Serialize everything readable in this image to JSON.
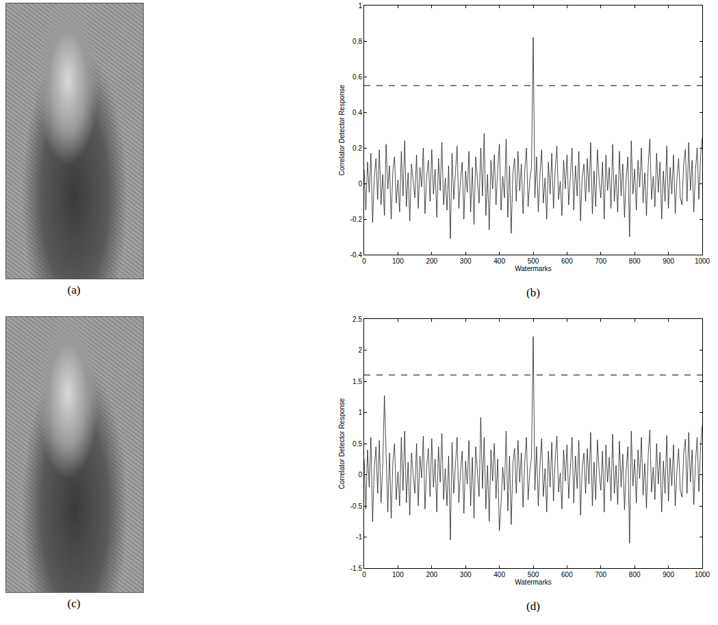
{
  "chart_data": [
    {
      "type": "line",
      "caption": "(b)",
      "x_label": "Watermarks",
      "y_label": "Correlator Detector Response",
      "color": "#000000",
      "grid": false,
      "xlim": [
        0,
        1000
      ],
      "xticks": [
        0,
        100,
        200,
        300,
        400,
        500,
        600,
        700,
        800,
        900,
        1000
      ],
      "ylim": [
        -0.4,
        1
      ],
      "yticks": [
        -0.4,
        -0.2,
        0,
        0.2,
        0.4,
        0.6,
        0.8,
        1
      ],
      "threshold": {
        "value": 0.55,
        "line_style": "dashed"
      },
      "x": [
        0,
        5,
        10,
        15,
        20,
        25,
        30,
        35,
        40,
        45,
        50,
        55,
        60,
        65,
        70,
        75,
        80,
        85,
        90,
        95,
        100,
        105,
        110,
        115,
        120,
        125,
        130,
        135,
        140,
        145,
        150,
        155,
        160,
        165,
        170,
        175,
        180,
        185,
        190,
        195,
        200,
        205,
        210,
        215,
        220,
        225,
        230,
        235,
        240,
        245,
        250,
        255,
        260,
        265,
        270,
        275,
        280,
        285,
        290,
        295,
        300,
        305,
        310,
        315,
        320,
        325,
        330,
        335,
        340,
        345,
        350,
        355,
        360,
        365,
        370,
        375,
        380,
        385,
        390,
        395,
        400,
        405,
        410,
        415,
        420,
        425,
        430,
        435,
        440,
        445,
        450,
        455,
        460,
        465,
        470,
        475,
        480,
        485,
        490,
        495,
        500,
        505,
        510,
        515,
        520,
        525,
        530,
        535,
        540,
        545,
        550,
        555,
        560,
        565,
        570,
        575,
        580,
        585,
        590,
        595,
        600,
        605,
        610,
        615,
        620,
        625,
        630,
        635,
        640,
        645,
        650,
        655,
        660,
        665,
        670,
        675,
        680,
        685,
        690,
        695,
        700,
        705,
        710,
        715,
        720,
        725,
        730,
        735,
        740,
        745,
        750,
        755,
        760,
        765,
        770,
        775,
        780,
        785,
        790,
        795,
        800,
        805,
        810,
        815,
        820,
        825,
        830,
        835,
        840,
        845,
        850,
        855,
        860,
        865,
        870,
        875,
        880,
        885,
        890,
        895,
        900,
        905,
        910,
        915,
        920,
        925,
        930,
        935,
        940,
        945,
        950,
        955,
        960,
        965,
        970,
        975,
        980,
        985,
        990,
        995,
        1000
      ],
      "values": [
        0.08,
        -0.15,
        0.12,
        -0.05,
        0.17,
        -0.22,
        0.03,
        0.14,
        -0.09,
        0.19,
        -0.12,
        0.05,
        -0.18,
        0.22,
        -0.03,
        0.1,
        -0.2,
        0.07,
        0.15,
        -0.11,
        0.02,
        -0.16,
        0.18,
        -0.07,
        0.24,
        -0.13,
        0.06,
        -0.21,
        0.11,
        0.01,
        -0.08,
        0.16,
        -0.14,
        0.09,
        -0.02,
        0.2,
        -0.17,
        0.04,
        0.13,
        -0.1,
        0.19,
        -0.06,
        0.08,
        -0.19,
        0.14,
        -0.04,
        0.23,
        -0.12,
        0.03,
        -0.15,
        0.1,
        -0.31,
        0.17,
        -0.09,
        0.06,
        0.21,
        -0.14,
        0.02,
        0.12,
        -0.2,
        0.07,
        -0.05,
        0.18,
        -0.16,
        0.09,
        -0.23,
        0.15,
        0.01,
        -0.11,
        0.2,
        -0.07,
        0.28,
        -0.18,
        0.05,
        -0.26,
        0.13,
        -0.03,
        0.16,
        -0.12,
        0.08,
        0.22,
        -0.15,
        0.04,
        -0.08,
        0.25,
        -0.19,
        0.1,
        -0.28,
        0.06,
        0.14,
        -0.1,
        0.18,
        -0.04,
        0.11,
        -0.17,
        0.07,
        0.2,
        -0.13,
        0.02,
        0.09,
        0.82,
        -0.08,
        0.15,
        -0.16,
        0.05,
        0.19,
        -0.11,
        0.03,
        -0.2,
        0.12,
        -0.06,
        0.17,
        -0.14,
        0.08,
        0.21,
        -0.09,
        0.01,
        -0.18,
        0.13,
        -0.03,
        0.16,
        -0.12,
        0.06,
        0.2,
        -0.15,
        0.1,
        -0.07,
        0.18,
        -0.21,
        0.04,
        0.11,
        -0.1,
        0.14,
        -0.05,
        0.23,
        -0.17,
        0.07,
        -0.13,
        0.19,
        0.02,
        -0.08,
        0.12,
        -0.2,
        0.16,
        -0.04,
        0.09,
        -0.14,
        0.22,
        -0.1,
        0.05,
        -0.16,
        0.18,
        -0.07,
        0.11,
        -0.19,
        0.03,
        0.15,
        -0.3,
        0.24,
        -0.06,
        0.08,
        -0.15,
        0.13,
        -0.02,
        0.2,
        -0.11,
        0.06,
        -0.18,
        0.1,
        0.25,
        -0.09,
        0.04,
        -0.13,
        0.17,
        -0.05,
        0.12,
        -0.2,
        0.07,
        -0.1,
        0.21,
        -0.14,
        0.09,
        -0.06,
        0.16,
        -0.17,
        0.02,
        0.14,
        -0.08,
        -0.12,
        0.11,
        0.19,
        -0.1,
        0.23,
        -0.04,
        0.13,
        -0.16,
        0.07,
        0.2,
        -0.09,
        0.15,
        0.26
      ]
    },
    {
      "type": "line",
      "caption": "(d)",
      "x_label": "Watermarks",
      "y_label": "Correlator Detector Response",
      "color": "#000000",
      "grid": false,
      "xlim": [
        0,
        1000
      ],
      "xticks": [
        0,
        100,
        200,
        300,
        400,
        500,
        600,
        700,
        800,
        900,
        1000
      ],
      "ylim": [
        -1.5,
        2.5
      ],
      "yticks": [
        -1.5,
        -1,
        -0.5,
        0,
        0.5,
        1,
        1.5,
        2,
        2.5
      ],
      "threshold": {
        "value": 1.6,
        "line_style": "dashed"
      },
      "x": [
        0,
        5,
        10,
        15,
        20,
        25,
        30,
        35,
        40,
        45,
        50,
        55,
        60,
        65,
        70,
        75,
        80,
        85,
        90,
        95,
        100,
        105,
        110,
        115,
        120,
        125,
        130,
        135,
        140,
        145,
        150,
        155,
        160,
        165,
        170,
        175,
        180,
        185,
        190,
        195,
        200,
        205,
        210,
        215,
        220,
        225,
        230,
        235,
        240,
        245,
        250,
        255,
        260,
        265,
        270,
        275,
        280,
        285,
        290,
        295,
        300,
        305,
        310,
        315,
        320,
        325,
        330,
        335,
        340,
        345,
        350,
        355,
        360,
        365,
        370,
        375,
        380,
        385,
        390,
        395,
        400,
        405,
        410,
        415,
        420,
        425,
        430,
        435,
        440,
        445,
        450,
        455,
        460,
        465,
        470,
        475,
        480,
        485,
        490,
        495,
        500,
        505,
        510,
        515,
        520,
        525,
        530,
        535,
        540,
        545,
        550,
        555,
        560,
        565,
        570,
        575,
        580,
        585,
        590,
        595,
        600,
        605,
        610,
        615,
        620,
        625,
        630,
        635,
        640,
        645,
        650,
        655,
        660,
        665,
        670,
        675,
        680,
        685,
        690,
        695,
        700,
        705,
        710,
        715,
        720,
        725,
        730,
        735,
        740,
        745,
        750,
        755,
        760,
        765,
        770,
        775,
        780,
        785,
        790,
        795,
        800,
        805,
        810,
        815,
        820,
        825,
        830,
        835,
        840,
        845,
        850,
        855,
        860,
        865,
        870,
        875,
        880,
        885,
        890,
        895,
        900,
        905,
        910,
        915,
        920,
        925,
        930,
        935,
        940,
        945,
        950,
        955,
        960,
        965,
        970,
        975,
        980,
        985,
        990,
        995,
        1000
      ],
      "values": [
        0.25,
        -0.55,
        0.4,
        -0.2,
        0.6,
        -0.75,
        0.1,
        0.45,
        -0.3,
        0.55,
        -0.45,
        0.15,
        1.27,
        0.3,
        -0.6,
        0.35,
        -0.7,
        0.2,
        0.5,
        -0.4,
        0.05,
        -0.5,
        0.6,
        -0.25,
        0.7,
        -0.45,
        0.2,
        -0.65,
        0.35,
        0.0,
        -0.3,
        0.5,
        -0.5,
        0.3,
        -0.05,
        0.62,
        -0.55,
        0.12,
        0.42,
        -0.35,
        0.58,
        -0.2,
        0.25,
        -0.6,
        0.45,
        -0.12,
        0.66,
        -0.4,
        0.1,
        -0.5,
        0.3,
        -1.05,
        0.52,
        -0.3,
        0.18,
        0.6,
        -0.45,
        0.05,
        0.38,
        -0.62,
        0.22,
        -0.15,
        0.55,
        -0.5,
        0.28,
        -0.7,
        0.45,
        0.04,
        -0.35,
        0.92,
        -0.22,
        0.6,
        -0.55,
        0.15,
        -0.75,
        0.4,
        -0.1,
        0.5,
        -0.38,
        0.25,
        -0.9,
        -0.45,
        0.12,
        -0.25,
        0.7,
        -0.58,
        0.3,
        -0.8,
        0.18,
        0.42,
        -0.3,
        0.55,
        -0.12,
        0.35,
        -0.52,
        0.2,
        0.6,
        -0.4,
        0.05,
        0.28,
        2.22,
        -0.25,
        0.45,
        -0.5,
        0.15,
        0.58,
        -0.35,
        0.1,
        -0.6,
        0.38,
        -0.2,
        0.52,
        -0.42,
        0.25,
        0.62,
        -0.28,
        0.03,
        -0.55,
        0.4,
        -0.1,
        0.48,
        -0.38,
        0.18,
        0.6,
        -0.45,
        0.3,
        -0.22,
        0.55,
        -0.65,
        0.12,
        0.35,
        -0.3,
        0.42,
        -0.15,
        0.68,
        -0.5,
        0.2,
        -0.4,
        0.56,
        0.05,
        -0.25,
        0.38,
        -0.6,
        0.48,
        -0.12,
        0.28,
        -0.42,
        0.65,
        -0.3,
        0.15,
        -0.48,
        0.54,
        -0.2,
        0.33,
        -0.56,
        0.08,
        0.45,
        -1.1,
        0.7,
        -0.18,
        0.25,
        -0.45,
        0.4,
        -0.06,
        0.6,
        -0.33,
        0.18,
        -0.54,
        0.3,
        0.72,
        -0.28,
        0.12,
        -0.4,
        0.5,
        -0.15,
        0.36,
        -0.6,
        0.22,
        -0.3,
        0.63,
        -0.42,
        0.27,
        -0.18,
        0.48,
        -0.5,
        0.06,
        0.42,
        -0.25,
        -0.36,
        0.33,
        0.57,
        -0.3,
        0.68,
        -0.12,
        0.4,
        -0.48,
        0.2,
        0.6,
        -0.27,
        0.45,
        0.8
      ]
    }
  ],
  "images": [
    {
      "caption": "(a)"
    },
    {
      "caption": "(c)"
    }
  ]
}
